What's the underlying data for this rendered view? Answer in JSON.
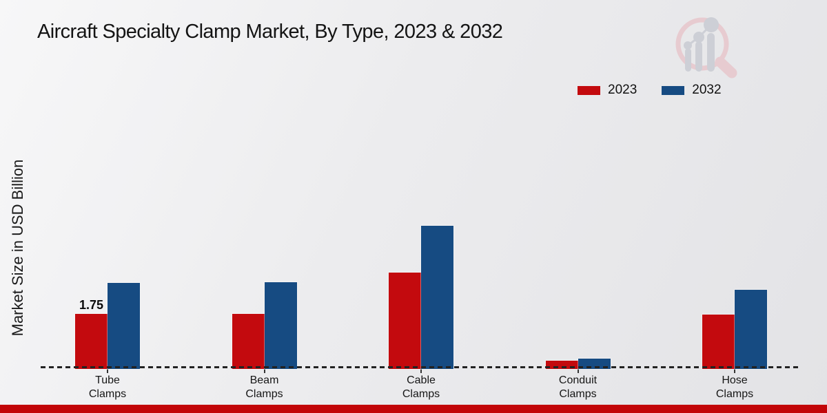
{
  "header": {
    "title": "Aircraft Specialty Clamp Market, By Type, 2023 & 2032"
  },
  "watermark": {
    "icon": "magnifier-bar-chart-logo"
  },
  "footer": {
    "accent_color": "#c20508"
  },
  "chart_data": {
    "type": "bar",
    "title": "Aircraft Specialty Clamp Market, By Type, 2023 & 2032",
    "xlabel": "",
    "ylabel": "Market Size in USD Billion",
    "categories": [
      "Tube Clamps",
      "Beam Clamps",
      "Cable Clamps",
      "Conduit Clamps",
      "Hose Clamps"
    ],
    "series": [
      {
        "name": "2023",
        "color": "#c30a0e",
        "values": [
          1.75,
          1.76,
          3.06,
          0.26,
          1.73
        ]
      },
      {
        "name": "2032",
        "color": "#164b82",
        "values": [
          2.74,
          2.76,
          4.55,
          0.33,
          2.52
        ]
      }
    ],
    "data_labels": [
      {
        "series_index": 0,
        "category_index": 0,
        "text": "1.75"
      }
    ],
    "ylim": [
      0,
      5
    ],
    "grid": false,
    "legend_position": "top-right",
    "baseline_style": "dashed",
    "axis_visible": false
  }
}
